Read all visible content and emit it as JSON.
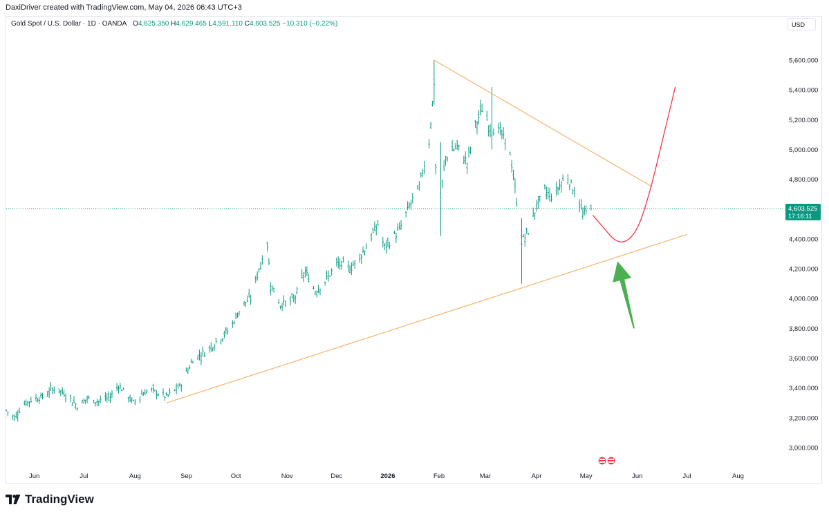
{
  "header": {
    "credit": "DaxiDriver created with TradingView.com, May 04, 2026 06:43 UTC+3"
  },
  "legend": {
    "symbol": "Gold Spot / U.S. Dollar · 1D · OANDA",
    "o_label": "O",
    "o_value": "4,625.350",
    "h_label": "H",
    "h_value": "4,629.465",
    "l_label": "L",
    "l_value": "4,591.110",
    "c_label": "C",
    "c_value": "4,603.525",
    "change": "−10.310 (−0.22%)"
  },
  "currency": "USD",
  "price_tag": {
    "value": "4,603.525",
    "countdown": "17:16:11"
  },
  "brand": {
    "name": "TradingView"
  },
  "colors": {
    "up": "#089981",
    "price_line": "#089981",
    "trendline": "#f5b26b",
    "projection": "#f23645",
    "arrow": "#4caf50"
  },
  "icons": {
    "events": "us-flag-event-icon"
  },
  "chart_data": {
    "type": "ohlc-bar",
    "timeframe": "1D",
    "ylim": [
      2900,
      5800
    ],
    "y_ticks": [
      3000,
      3200,
      3400,
      3600,
      3800,
      4000,
      4200,
      4400,
      4600,
      4800,
      5000,
      5200,
      5400,
      5600
    ],
    "y_tick_labels": [
      "3,000.000",
      "3,200.000",
      "3,400.000",
      "3,600.000",
      "3,800.000",
      "4,000.000",
      "4,200.000",
      "4,400.000",
      "4,600.000",
      "4,800.000",
      "5,000.000",
      "5,200.000",
      "5,400.000",
      "5,600.000"
    ],
    "x_range": [
      "2025-05-15",
      "2026-08-28"
    ],
    "x_ticks": [
      {
        "date": "2025-06-01",
        "label": "Jun"
      },
      {
        "date": "2025-07-01",
        "label": "Jul"
      },
      {
        "date": "2025-08-01",
        "label": "Aug"
      },
      {
        "date": "2025-09-01",
        "label": "Sep"
      },
      {
        "date": "2025-10-01",
        "label": "Oct"
      },
      {
        "date": "2025-11-01",
        "label": "Nov"
      },
      {
        "date": "2025-12-01",
        "label": "Dec"
      },
      {
        "date": "2026-01-01",
        "label": "2026"
      },
      {
        "date": "2026-02-01",
        "label": "Feb"
      },
      {
        "date": "2026-03-01",
        "label": "Mar"
      },
      {
        "date": "2026-04-01",
        "label": "Apr"
      },
      {
        "date": "2026-05-01",
        "label": "May"
      },
      {
        "date": "2026-06-01",
        "label": "Jun"
      },
      {
        "date": "2026-07-01",
        "label": "Jul"
      },
      {
        "date": "2026-08-01",
        "label": "Aug"
      }
    ],
    "close_anchors": [
      [
        "2025-05-15",
        3250
      ],
      [
        "2025-05-20",
        3200
      ],
      [
        "2025-05-25",
        3290
      ],
      [
        "2025-06-01",
        3330
      ],
      [
        "2025-06-06",
        3340
      ],
      [
        "2025-06-13",
        3400
      ],
      [
        "2025-06-20",
        3360
      ],
      [
        "2025-06-27",
        3280
      ],
      [
        "2025-07-03",
        3330
      ],
      [
        "2025-07-10",
        3310
      ],
      [
        "2025-07-17",
        3340
      ],
      [
        "2025-07-22",
        3420
      ],
      [
        "2025-07-31",
        3300
      ],
      [
        "2025-08-05",
        3360
      ],
      [
        "2025-08-10",
        3390
      ],
      [
        "2025-08-20",
        3340
      ],
      [
        "2025-08-28",
        3410
      ],
      [
        "2025-09-05",
        3590
      ],
      [
        "2025-09-12",
        3640
      ],
      [
        "2025-09-20",
        3720
      ],
      [
        "2025-09-27",
        3790
      ],
      [
        "2025-10-05",
        3960
      ],
      [
        "2025-10-10",
        4000
      ],
      [
        "2025-10-15",
        4200
      ],
      [
        "2025-10-20",
        4360
      ],
      [
        "2025-10-22",
        4100
      ],
      [
        "2025-10-28",
        3960
      ],
      [
        "2025-11-05",
        3990
      ],
      [
        "2025-11-12",
        4180
      ],
      [
        "2025-11-18",
        4050
      ],
      [
        "2025-11-25",
        4130
      ],
      [
        "2025-12-01",
        4230
      ],
      [
        "2025-12-10",
        4210
      ],
      [
        "2025-12-18",
        4330
      ],
      [
        "2025-12-26",
        4500
      ],
      [
        "2025-12-30",
        4340
      ],
      [
        "2026-01-08",
        4460
      ],
      [
        "2026-01-14",
        4620
      ],
      [
        "2026-01-20",
        4750
      ],
      [
        "2026-01-26",
        5050
      ],
      [
        "2026-01-29",
        5450
      ],
      [
        "2026-01-30",
        4880
      ],
      [
        "2026-02-02",
        4680
      ],
      [
        "2026-02-05",
        4950
      ],
      [
        "2026-02-12",
        5020
      ],
      [
        "2026-02-18",
        4910
      ],
      [
        "2026-02-23",
        5160
      ],
      [
        "2026-02-28",
        5300
      ],
      [
        "2026-03-03",
        5150
      ],
      [
        "2026-03-10",
        5120
      ],
      [
        "2026-03-16",
        4980
      ],
      [
        "2026-03-20",
        4650
      ],
      [
        "2026-03-23",
        4380
      ],
      [
        "2026-03-27",
        4450
      ],
      [
        "2026-04-01",
        4620
      ],
      [
        "2026-04-06",
        4720
      ],
      [
        "2026-04-11",
        4680
      ],
      [
        "2026-04-16",
        4780
      ],
      [
        "2026-04-20",
        4810
      ],
      [
        "2026-04-25",
        4700
      ],
      [
        "2026-04-29",
        4560
      ],
      [
        "2026-05-04",
        4603
      ]
    ],
    "spikes": [
      {
        "date": "2026-01-29",
        "high": 5600,
        "low": 5300
      },
      {
        "date": "2026-02-02",
        "high": 5050,
        "low": 4420
      },
      {
        "date": "2026-03-23",
        "high": 4540,
        "low": 4100
      },
      {
        "date": "2026-03-05",
        "high": 5420,
        "low": 5000
      }
    ],
    "drawings": {
      "resistance_line": [
        [
          "2026-01-29",
          5600
        ],
        [
          "2026-06-10",
          4750
        ]
      ],
      "support_line": [
        [
          "2025-08-20",
          3300
        ],
        [
          "2026-07-01",
          4430
        ]
      ],
      "projection_curve": [
        [
          "2026-05-05",
          4560
        ],
        [
          "2026-05-12",
          4470
        ],
        [
          "2026-05-19",
          4380
        ],
        [
          "2026-05-26",
          4380
        ],
        [
          "2026-06-02",
          4480
        ],
        [
          "2026-06-09",
          4730
        ],
        [
          "2026-06-16",
          5050
        ],
        [
          "2026-06-24",
          5420
        ]
      ],
      "arrow": {
        "from": [
          "2026-05-30",
          3800
        ],
        "to": [
          "2026-05-20",
          4250
        ]
      }
    }
  }
}
